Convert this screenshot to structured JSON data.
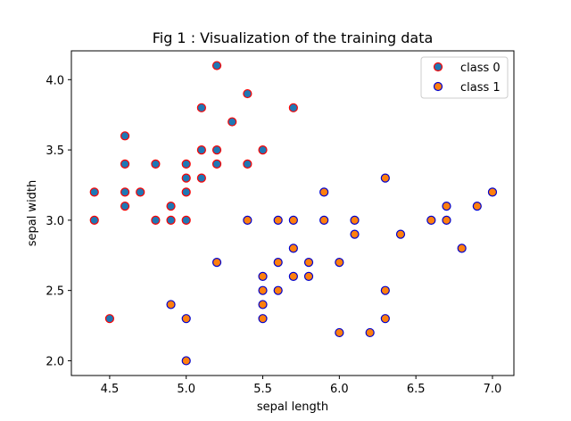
{
  "chart_data": {
    "type": "scatter",
    "title": "Fig 1 : Visualization of the training data",
    "xlabel": "sepal length",
    "ylabel": "sepal width",
    "xlim": [
      4.25,
      7.14
    ],
    "ylim": [
      1.895,
      4.205
    ],
    "xticks": [
      4.5,
      5.0,
      5.5,
      6.0,
      6.5,
      7.0
    ],
    "xtick_labels": [
      "4.5",
      "5.0",
      "5.5",
      "6.0",
      "6.5",
      "7.0"
    ],
    "yticks": [
      2.0,
      2.5,
      3.0,
      3.5,
      4.0
    ],
    "ytick_labels": [
      "2.0",
      "2.5",
      "3.0",
      "3.5",
      "4.0"
    ],
    "grid": false,
    "legend_position": "top-right",
    "series": [
      {
        "name": "class 0",
        "face_color": "#1f77b4",
        "edge_color": "#ff0000",
        "points": [
          [
            5.2,
            4.1
          ],
          [
            5.4,
            3.9
          ],
          [
            5.1,
            3.8
          ],
          [
            5.7,
            3.8
          ],
          [
            5.3,
            3.7
          ],
          [
            4.6,
            3.6
          ],
          [
            5.1,
            3.5
          ],
          [
            5.2,
            3.5
          ],
          [
            5.5,
            3.5
          ],
          [
            4.6,
            3.4
          ],
          [
            4.8,
            3.4
          ],
          [
            5.0,
            3.4
          ],
          [
            5.2,
            3.4
          ],
          [
            5.4,
            3.4
          ],
          [
            5.0,
            3.3
          ],
          [
            5.1,
            3.3
          ],
          [
            4.4,
            3.2
          ],
          [
            4.6,
            3.2
          ],
          [
            4.7,
            3.2
          ],
          [
            5.0,
            3.2
          ],
          [
            4.6,
            3.1
          ],
          [
            4.9,
            3.1
          ],
          [
            4.4,
            3.0
          ],
          [
            4.8,
            3.0
          ],
          [
            4.9,
            3.0
          ],
          [
            5.0,
            3.0
          ],
          [
            4.5,
            2.3
          ]
        ]
      },
      {
        "name": "class 1",
        "face_color": "#ff7f0e",
        "edge_color": "#0000cd",
        "points": [
          [
            6.3,
            3.3
          ],
          [
            5.9,
            3.2
          ],
          [
            7.0,
            3.2
          ],
          [
            6.7,
            3.1
          ],
          [
            6.9,
            3.1
          ],
          [
            5.4,
            3.0
          ],
          [
            5.6,
            3.0
          ],
          [
            5.7,
            3.0
          ],
          [
            5.9,
            3.0
          ],
          [
            6.1,
            3.0
          ],
          [
            6.6,
            3.0
          ],
          [
            6.7,
            3.0
          ],
          [
            6.1,
            2.9
          ],
          [
            6.4,
            2.9
          ],
          [
            5.7,
            2.8
          ],
          [
            6.8,
            2.8
          ],
          [
            5.2,
            2.7
          ],
          [
            5.6,
            2.7
          ],
          [
            5.8,
            2.7
          ],
          [
            6.0,
            2.7
          ],
          [
            5.5,
            2.6
          ],
          [
            5.7,
            2.6
          ],
          [
            5.8,
            2.6
          ],
          [
            5.5,
            2.5
          ],
          [
            5.6,
            2.5
          ],
          [
            6.3,
            2.5
          ],
          [
            4.9,
            2.4
          ],
          [
            5.5,
            2.4
          ],
          [
            5.0,
            2.3
          ],
          [
            5.5,
            2.3
          ],
          [
            6.3,
            2.3
          ],
          [
            6.0,
            2.2
          ],
          [
            6.2,
            2.2
          ],
          [
            5.0,
            2.0
          ]
        ]
      }
    ]
  }
}
